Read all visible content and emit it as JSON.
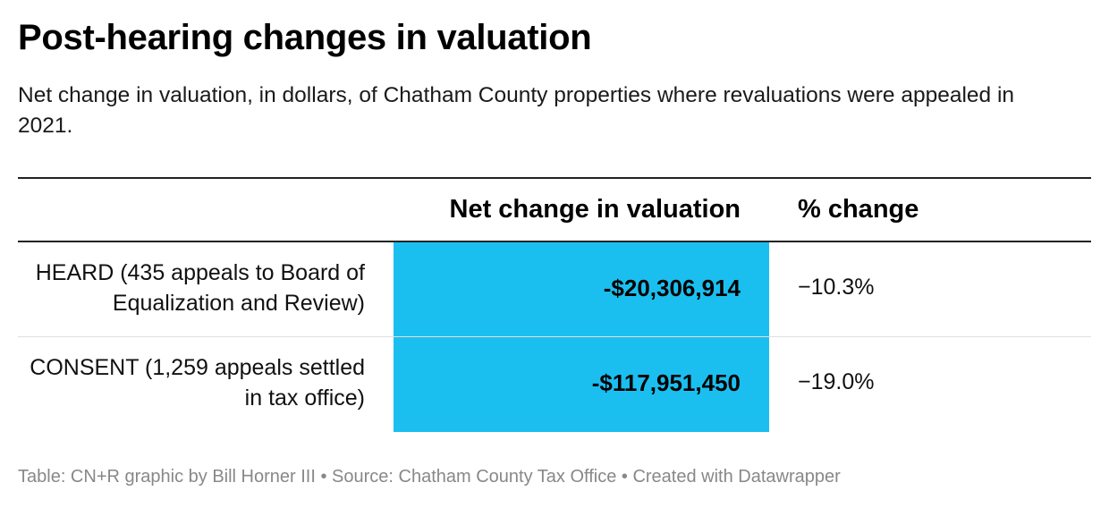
{
  "chart_data": {
    "type": "table",
    "title": "Post-hearing changes in valuation",
    "subtitle": "Net change in valuation, in dollars, of Chatham County properties where revaluations were appealed in 2021.",
    "columns": [
      "",
      "Net change in valuation",
      "% change"
    ],
    "rows": [
      {
        "label": "HEARD (435 appeals to Board of Equalization and Review)",
        "net_change": "-$20,306,914",
        "net_change_value": -20306914,
        "pct_change": "−10.3%",
        "pct_change_value": -10.3
      },
      {
        "label": "CONSENT (1,259 appeals settled in tax office)",
        "net_change": "-$117,951,450",
        "net_change_value": -117951450,
        "pct_change": "−19.0%",
        "pct_change_value": -19.0
      }
    ],
    "highlight_color": "#1bbfef",
    "footer": "Table: CN+R graphic by Bill Horner III • Source: Chatham County Tax Office • Created with Datawrapper"
  }
}
